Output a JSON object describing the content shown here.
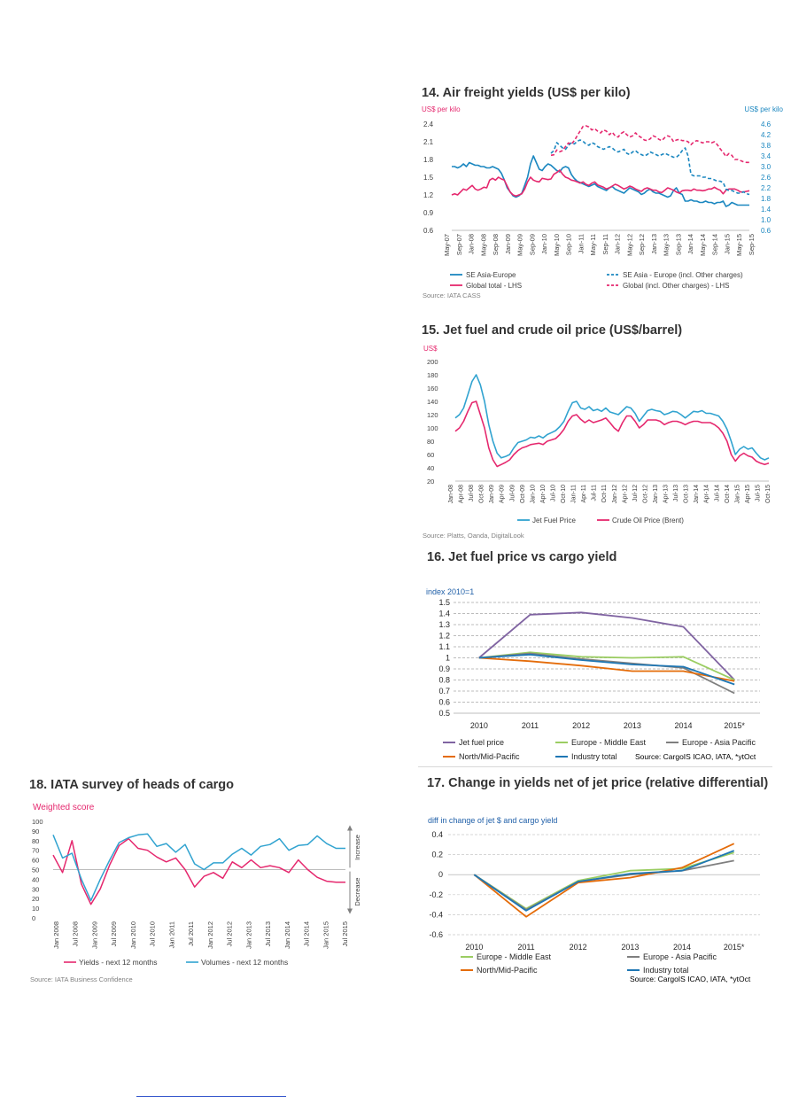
{
  "colors": {
    "blue": "#1b87c0",
    "pink": "#e5286e",
    "purple": "#8064a2",
    "green": "#9bcd62",
    "gray": "#7f7f7f",
    "orange": "#e46c0a",
    "steel": "#1f77b4",
    "cyan": "#31a3d0",
    "axis_blue": "#1b87c0",
    "axis_pink": "#e5286e"
  },
  "charts": {
    "c14": {
      "title": "14. Air freight yields (US$ per kilo)",
      "source": "Source: IATA CASS",
      "chart_data": {
        "type": "line",
        "left_axis_label": "US$ per kilo",
        "right_axis_label": "US$ per kilo",
        "left_ticks": [
          "2.4",
          "2.1",
          "1.8",
          "1.5",
          "1.2",
          "0.9",
          "0.6"
        ],
        "right_ticks": [
          "4.6",
          "4.2",
          "3.8",
          "3.4",
          "3.0",
          "2.6",
          "2.2",
          "1.8",
          "1.4",
          "1.0",
          "0.6"
        ],
        "ylim_left": [
          0.6,
          2.4
        ],
        "ylim_right": [
          0.6,
          4.6
        ],
        "x_labels": [
          "May-07",
          "Sep-07",
          "Jan-08",
          "May-08",
          "Sep-08",
          "Jan-09",
          "May-09",
          "Sep-09",
          "Jan-10",
          "May-10",
          "Sep-10",
          "Jan-11",
          "May-11",
          "Sep-11",
          "Jan-12",
          "May-12",
          "Sep-12",
          "Jan-13",
          "May-13",
          "Sep-13",
          "Jan-14",
          "May-14",
          "Sep-14",
          "Jan-15",
          "May-15",
          "Sep-15"
        ],
        "series": [
          {
            "name": "SE Asia-Europe",
            "axis": "right",
            "color": "blue",
            "dash": false,
            "start": 0,
            "values": [
              3.0,
              3.0,
              2.95,
              3.0,
              3.1,
              3.0,
              3.15,
              3.1,
              3.05,
              3.05,
              3.0,
              3.0,
              2.95,
              2.95,
              3.0,
              2.95,
              2.9,
              2.75,
              2.5,
              2.2,
              2.05,
              1.9,
              1.85,
              1.9,
              2.0,
              2.3,
              2.6,
              3.1,
              3.4,
              3.15,
              2.9,
              2.85,
              3.0,
              3.1,
              3.05,
              2.95,
              2.85,
              2.8,
              2.95,
              3.0,
              2.95,
              2.7,
              2.55,
              2.45,
              2.4,
              2.35,
              2.3,
              2.25,
              2.3,
              2.35,
              2.25,
              2.2,
              2.15,
              2.1,
              2.2,
              2.25,
              2.15,
              2.1,
              2.05,
              2.0,
              2.1,
              2.2,
              2.15,
              2.1,
              2.05,
              1.95,
              2.0,
              2.1,
              2.15,
              2.05,
              2.0,
              2.0,
              1.95,
              1.9,
              1.85,
              1.9,
              2.1,
              2.2,
              2.0,
              1.95,
              1.7,
              1.7,
              1.75,
              1.7,
              1.7,
              1.65,
              1.65,
              1.7,
              1.65,
              1.65,
              1.6,
              1.65,
              1.65,
              1.7,
              1.5,
              1.55,
              1.65,
              1.6,
              1.55,
              1.55,
              1.55,
              1.55,
              1.55
            ]
          },
          {
            "name": "Global total  - LHS",
            "axis": "left",
            "color": "pink",
            "dash": false,
            "start": 0,
            "values": [
              1.2,
              1.22,
              1.2,
              1.25,
              1.3,
              1.28,
              1.32,
              1.36,
              1.3,
              1.28,
              1.3,
              1.33,
              1.32,
              1.45,
              1.48,
              1.45,
              1.5,
              1.47,
              1.45,
              1.35,
              1.25,
              1.2,
              1.18,
              1.2,
              1.22,
              1.3,
              1.42,
              1.5,
              1.45,
              1.43,
              1.42,
              1.48,
              1.47,
              1.46,
              1.47,
              1.55,
              1.58,
              1.62,
              1.55,
              1.5,
              1.48,
              1.45,
              1.44,
              1.42,
              1.4,
              1.42,
              1.38,
              1.36,
              1.4,
              1.42,
              1.37,
              1.35,
              1.33,
              1.3,
              1.32,
              1.35,
              1.38,
              1.36,
              1.33,
              1.3,
              1.32,
              1.35,
              1.33,
              1.3,
              1.28,
              1.26,
              1.3,
              1.32,
              1.3,
              1.28,
              1.28,
              1.25,
              1.24,
              1.28,
              1.32,
              1.3,
              1.28,
              1.25,
              1.23,
              1.27,
              1.28,
              1.28,
              1.27,
              1.3,
              1.28,
              1.28,
              1.27,
              1.28,
              1.3,
              1.3,
              1.33,
              1.3,
              1.28,
              1.22,
              1.28,
              1.3,
              1.3,
              1.3,
              1.28,
              1.25,
              1.25,
              1.26,
              1.27
            ]
          },
          {
            "name": "SE Asia - Europe (incl. Other charges)",
            "axis": "right",
            "color": "blue",
            "dash": true,
            "start": 34,
            "values": [
              3.5,
              3.6,
              3.9,
              3.8,
              3.7,
              3.65,
              3.8,
              3.9,
              3.85,
              3.95,
              4.0,
              3.95,
              3.85,
              3.8,
              3.9,
              3.85,
              3.75,
              3.7,
              3.65,
              3.7,
              3.75,
              3.7,
              3.6,
              3.55,
              3.6,
              3.65,
              3.5,
              3.45,
              3.55,
              3.6,
              3.5,
              3.45,
              3.4,
              3.45,
              3.55,
              3.5,
              3.45,
              3.4,
              3.45,
              3.5,
              3.45,
              3.4,
              3.35,
              3.35,
              3.45,
              3.6,
              3.7,
              3.4,
              2.7,
              2.65,
              2.65,
              2.65,
              2.6,
              2.6,
              2.55,
              2.55,
              2.5,
              2.45,
              2.45,
              2.4,
              2.15,
              2.1,
              2.1,
              2.05,
              2.0,
              2.0,
              2.05,
              1.98,
              1.95
            ]
          },
          {
            "name": "Global (incl. Other charges) - LHS",
            "axis": "left",
            "color": "pink",
            "dash": true,
            "start": 34,
            "values": [
              1.87,
              1.88,
              1.96,
              1.93,
              1.95,
              2.02,
              2.08,
              2.06,
              2.12,
              2.2,
              2.28,
              2.36,
              2.37,
              2.35,
              2.3,
              2.32,
              2.28,
              2.25,
              2.3,
              2.28,
              2.22,
              2.26,
              2.2,
              2.18,
              2.24,
              2.27,
              2.22,
              2.18,
              2.2,
              2.25,
              2.2,
              2.17,
              2.13,
              2.12,
              2.15,
              2.2,
              2.18,
              2.14,
              2.12,
              2.17,
              2.2,
              2.18,
              2.1,
              2.13,
              2.14,
              2.12,
              2.12,
              2.1,
              2.05,
              2.1,
              2.12,
              2.1,
              2.08,
              2.1,
              2.1,
              2.08,
              2.1,
              2.05,
              1.98,
              1.92,
              1.85,
              1.9,
              1.87,
              1.8,
              1.8,
              1.78,
              1.76,
              1.75,
              1.75
            ]
          }
        ],
        "legend": [
          "SE Asia-Europe",
          "SE Asia - Europe (incl. Other charges)",
          "Global total  - LHS",
          "Global (incl. Other charges) - LHS"
        ]
      }
    },
    "c15": {
      "title": "15. Jet fuel and crude oil price (US$/barrel)",
      "source": "Source: Platts, Oanda, DigitalLook",
      "chart_data": {
        "type": "line",
        "ylabel": "US$",
        "ylim": [
          20,
          200
        ],
        "y_ticks": [
          "200",
          "180",
          "160",
          "140",
          "120",
          "100",
          "80",
          "60",
          "40",
          "20"
        ],
        "x_labels": [
          "Jan-08",
          "Apr-08",
          "Jul-08",
          "Oct-08",
          "Jan-09",
          "Apr-09",
          "Jul-09",
          "Oct-09",
          "Jan-10",
          "Apr-10",
          "Jul-10",
          "Oct-10",
          "Jan-11",
          "Apr-11",
          "Jul-11",
          "Oct-11",
          "Jan-12",
          "Apr-12",
          "Jul-12",
          "Oct-12",
          "Jan-13",
          "Apr-13",
          "Jul-13",
          "Oct-13",
          "Jan-14",
          "Apr-14",
          "Jul-14",
          "Oct-14",
          "Jan-15",
          "Apr-15",
          "Jul-15",
          "Oct-15"
        ],
        "series": [
          {
            "name": "Jet Fuel Price",
            "color": "cyan",
            "values": [
              115,
              120,
              130,
              150,
              170,
              180,
              165,
              140,
              105,
              80,
              62,
              55,
              57,
              60,
              70,
              78,
              80,
              82,
              86,
              85,
              88,
              85,
              90,
              93,
              96,
              102,
              110,
              125,
              138,
              140,
              130,
              128,
              132,
              126,
              128,
              125,
              130,
              124,
              122,
              120,
              126,
              132,
              130,
              122,
              110,
              118,
              126,
              128,
              126,
              125,
              120,
              122,
              125,
              124,
              120,
              115,
              120,
              125,
              124,
              126,
              122,
              122,
              120,
              118,
              110,
              98,
              80,
              60,
              68,
              72,
              68,
              70,
              62,
              55,
              52,
              55
            ]
          },
          {
            "name": "Crude Oil Price (Brent)",
            "color": "pink",
            "values": [
              95,
              100,
              110,
              125,
              138,
              140,
              120,
              100,
              70,
              52,
              42,
              45,
              48,
              52,
              60,
              66,
              70,
              72,
              75,
              76,
              77,
              75,
              80,
              82,
              84,
              90,
              98,
              110,
              118,
              120,
              113,
              108,
              112,
              108,
              110,
              112,
              115,
              108,
              100,
              95,
              108,
              118,
              118,
              110,
              100,
              105,
              112,
              112,
              112,
              110,
              105,
              108,
              110,
              110,
              108,
              105,
              108,
              110,
              110,
              108,
              108,
              108,
              105,
              100,
              92,
              80,
              60,
              50,
              58,
              62,
              58,
              56,
              50,
              47,
              45,
              47
            ]
          }
        ],
        "legend": [
          "Jet Fuel Price",
          "Crude Oil Price (Brent)"
        ]
      }
    },
    "c16": {
      "title": "16. Jet fuel price vs cargo yield",
      "source": "Source: CargoIS ICAO, IATA, *ytOct",
      "chart_data": {
        "type": "line",
        "ylabel": "index 2010=1",
        "ylim": [
          0.5,
          1.5
        ],
        "y_ticks": [
          "1.5",
          "1.4",
          "1.3",
          "1.2",
          "1.1",
          "1",
          "0.9",
          "0.8",
          "0.7",
          "0.6",
          "0.5"
        ],
        "categories": [
          "2010",
          "2011",
          "2012",
          "2013",
          "2014",
          "2015*"
        ],
        "series": [
          {
            "name": "Jet fuel price",
            "color": "purple",
            "values": [
              1.0,
              1.39,
              1.41,
              1.36,
              1.28,
              0.8
            ]
          },
          {
            "name": "Europe - Middle East",
            "color": "green",
            "values": [
              1.0,
              1.05,
              1.01,
              1.0,
              1.01,
              0.8
            ]
          },
          {
            "name": "Europe - Asia Pacific",
            "color": "gray",
            "values": [
              1.0,
              1.04,
              0.99,
              0.95,
              0.91,
              0.68
            ]
          },
          {
            "name": "North/Mid-Pacific",
            "color": "orange",
            "values": [
              1.0,
              0.97,
              0.93,
              0.88,
              0.88,
              0.79
            ]
          },
          {
            "name": "Industry total",
            "color": "steel",
            "values": [
              1.0,
              1.03,
              0.98,
              0.94,
              0.92,
              0.76
            ]
          }
        ]
      }
    },
    "c17": {
      "title": "17. Change in yields net of jet price (relative differential)",
      "source": "Source: CargoIS ICAO, IATA, *ytOct",
      "chart_data": {
        "type": "line",
        "ylabel": "diff in change of jet $ and cargo yield",
        "ylim": [
          -0.6,
          0.4
        ],
        "y_ticks": [
          "0.4",
          "0.2",
          "0",
          "-0.2",
          "-0.4",
          "-0.6"
        ],
        "categories": [
          "2010",
          "2011",
          "2012",
          "2013",
          "2014",
          "2015*"
        ],
        "series": [
          {
            "name": "Europe - Middle East",
            "color": "green",
            "values": [
              0,
              -0.34,
              -0.06,
              0.04,
              0.06,
              0.22
            ]
          },
          {
            "name": "Europe - Asia Pacific",
            "color": "gray",
            "values": [
              0,
              -0.35,
              -0.07,
              0.0,
              0.04,
              0.14
            ]
          },
          {
            "name": "North/Mid-Pacific",
            "color": "orange",
            "values": [
              0,
              -0.42,
              -0.08,
              -0.03,
              0.07,
              0.31
            ]
          },
          {
            "name": "Industry total",
            "color": "steel",
            "values": [
              0,
              -0.36,
              -0.07,
              0.01,
              0.04,
              0.24
            ]
          }
        ]
      }
    },
    "c18": {
      "title": "18. IATA survey of heads of cargo",
      "source": "Source: IATA Business Confidence",
      "chart_data": {
        "type": "line",
        "ylabel": "Weighted score",
        "ylim": [
          0,
          100
        ],
        "y_ticks": [
          "100",
          "90",
          "80",
          "70",
          "60",
          "50",
          "40",
          "30",
          "20",
          "10",
          "0"
        ],
        "x_labels": [
          "Jan 2008",
          "Jul 2008",
          "Jan 2009",
          "Jul 2009",
          "Jan 2010",
          "Jul 2010",
          "Jan 2011",
          "Jul 2011",
          "Jan 2012",
          "Jul 2012",
          "Jan 2013",
          "Jul 2013",
          "Jan 2014",
          "Jul 2014",
          "Jan 2015",
          "Jul 2015"
        ],
        "side_label_increase": "Increase",
        "side_label_decrease": "Decrease",
        "series": [
          {
            "name": "Yields - next 12 months",
            "color": "pink",
            "values": [
              65,
              47,
              80,
              35,
              14,
              30,
              55,
              75,
              82,
              72,
              70,
              63,
              58,
              62,
              50,
              32,
              43,
              47,
              41,
              58,
              52,
              60,
              52,
              54,
              52,
              47,
              60,
              50,
              42,
              38,
              37,
              37
            ]
          },
          {
            "name": "Volumes - next 12 months",
            "color": "cyan",
            "values": [
              86,
              62,
              67,
              40,
              18,
              40,
              60,
              78,
              83,
              86,
              87,
              74,
              77,
              68,
              76,
              56,
              50,
              57,
              57,
              66,
              72,
              65,
              74,
              76,
              82,
              70,
              75,
              76,
              85,
              77,
              72,
              72
            ]
          }
        ]
      }
    }
  }
}
